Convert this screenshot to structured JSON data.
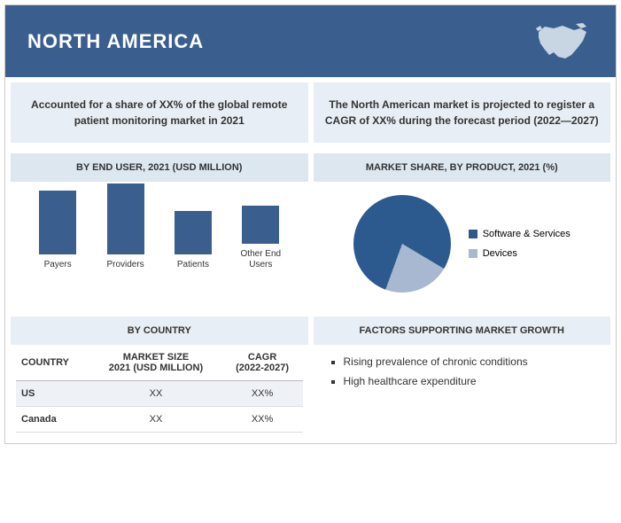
{
  "header": {
    "title": "NORTH AMERICA",
    "bg_color": "#3a5f8f"
  },
  "info_left": "Accounted for a share of XX% of the\nglobal remote patient monitoring market in 2021",
  "info_right": "The North American market is projected to register a\nCAGR of XX% during the forecast period (2022—2027)",
  "end_user_chart": {
    "title": "BY END USER, 2021 (USD MILLION)",
    "type": "bar",
    "categories": [
      "Payers",
      "Providers",
      "Patients",
      "Other End Users"
    ],
    "values": [
      70,
      78,
      48,
      42
    ],
    "bar_color": "#3a5f8f",
    "label_fontsize": 10
  },
  "market_share_chart": {
    "title": "MARKET SHARE, BY PRODUCT, 2021 (%)",
    "type": "pie",
    "slices": [
      {
        "label": "Software & Services",
        "value": 78,
        "color": "#2d5a8e"
      },
      {
        "label": "Devices",
        "value": 22,
        "color": "#a8b8d0"
      }
    ]
  },
  "country_section": {
    "title": "BY COUNTRY",
    "columns": [
      "COUNTRY",
      "MARKET SIZE\n2021 (USD MILLION)",
      "CAGR\n(2022-2027)"
    ],
    "rows": [
      [
        "US",
        "XX",
        "XX%"
      ],
      [
        "Canada",
        "XX",
        "XX%"
      ]
    ]
  },
  "factors_section": {
    "title": "FACTORS SUPPORTING MARKET GROWTH",
    "items": [
      "Rising prevalence of chronic conditions",
      "High healthcare expenditure"
    ]
  }
}
